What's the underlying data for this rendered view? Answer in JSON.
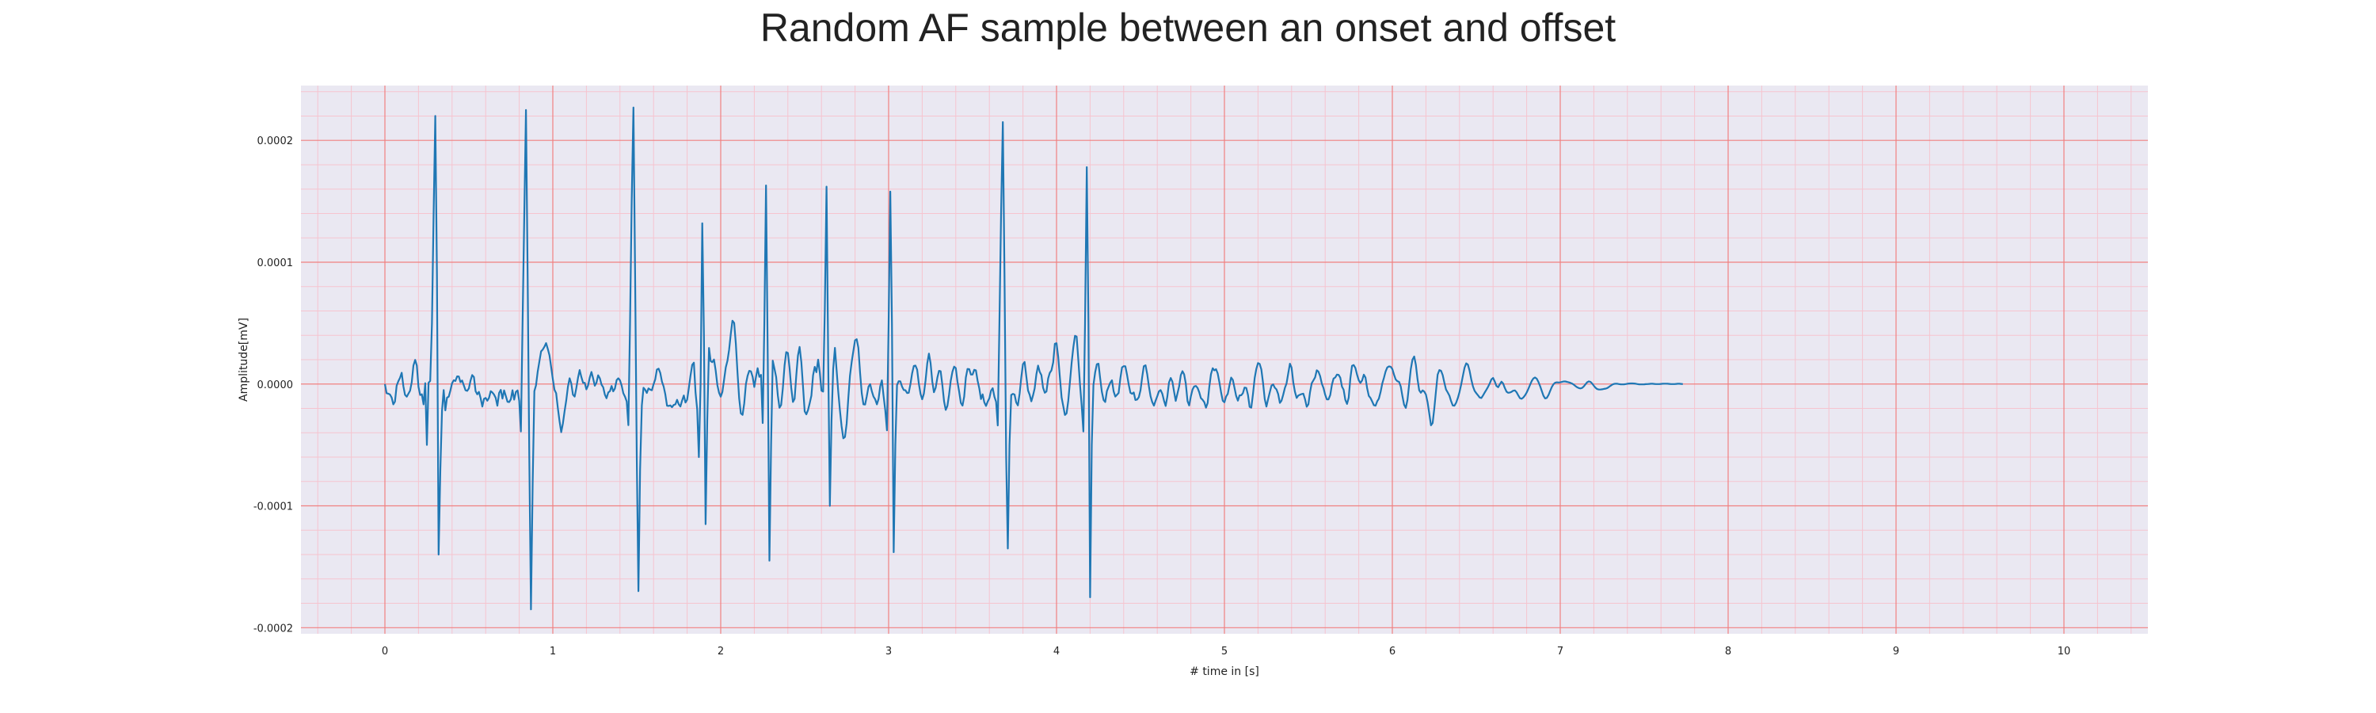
{
  "chart_data": {
    "type": "line",
    "title": "Random AF sample between an onset and offset",
    "xlabel": "# time in [s]",
    "ylabel": "Amplitude[mV]",
    "xlim": [
      -0.5,
      10.5
    ],
    "ylim": [
      -0.000205,
      0.000245
    ],
    "xticks": [
      0,
      1,
      2,
      3,
      4,
      5,
      6,
      7,
      8,
      9,
      10
    ],
    "xtick_labels": [
      "0",
      "1",
      "2",
      "3",
      "4",
      "5",
      "6",
      "7",
      "8",
      "9",
      "10"
    ],
    "yticks": [
      -0.0002,
      -0.0001,
      0.0,
      0.0001,
      0.0002
    ],
    "ytick_labels": [
      "-0.0002",
      "-0.0001",
      "0.0000",
      "0.0001",
      "0.0002"
    ],
    "grid": true,
    "minor_grid": true,
    "legend": "none",
    "colors": {
      "line": "#1f77b4",
      "background": "#eae8f2",
      "major_grid": "#f08080",
      "minor_grid": "#f6c4cf"
    },
    "sampling_rate_hz": 100,
    "series": [
      {
        "x_start": 0,
        "x_step": 0.01,
        "values": [
          0.0,
          -7.5e-06,
          -7.9e-06,
          -8.6e-06,
          -1.11e-05,
          -1.67e-05,
          -1.44e-05,
          -1.4e-06,
          2.4e-06,
          5.2e-06,
          9.3e-06,
          -1.7e-06,
          -8.9e-06,
          -1.04e-05,
          -7.9e-06,
          -5.4e-06,
          1.6e-06,
          1.52e-05,
          1.98e-05,
          1.52e-05,
          -2.4e-06,
          -9e-06,
          -8.4e-06,
          -1.67e-05,
          7e-07,
          -5e-05,
          1.1e-06,
          2.5e-06,
          5e-05,
          0.00014,
          0.00022,
          9e-05,
          -0.00014,
          -7e-05,
          -2.2e-05,
          -4.9e-06,
          -2.16e-05,
          -1.12e-05,
          -1.04e-05,
          -5.2e-06,
          7e-07,
          3.1e-06,
          2.5e-06,
          6.3e-06,
          6.2e-06,
          1.5e-06,
          2.9e-06,
          -1.1e-06,
          -5.1e-06,
          -5.6e-06,
          -3.6e-06,
          2.8e-06,
          7.4e-06,
          5.7e-06,
          -5.8e-06,
          -8.4e-06,
          -6.4e-06,
          -1.15e-05,
          -1.85e-05,
          -1.22e-05,
          -1.14e-05,
          -1.37e-05,
          -1.14e-05,
          -5.9e-06,
          -6.9e-06,
          -8.7e-06,
          -1.14e-05,
          -1.78e-05,
          -7.3e-06,
          -4.8e-06,
          -1.19e-05,
          -5.2e-06,
          -9.7e-06,
          -1.46e-05,
          -1.48e-05,
          -1.25e-05,
          -5.1e-06,
          -1.28e-05,
          -6.4e-06,
          -5.2e-06,
          -1.38e-05,
          -3.9e-05,
          5e-05,
          0.00014,
          0.000225,
          9e-05,
          -6e-05,
          -0.000185,
          -8e-05,
          -5.8e-06,
          -1e-06,
          1.01e-05,
          1.84e-05,
          2.68e-05,
          2.83e-05,
          3.06e-05,
          3.36e-05,
          2.9e-05,
          2.35e-05,
          1.39e-05,
          4.1e-06,
          -4.7e-06,
          -7.5e-06,
          -2e-05,
          -3.05e-05,
          -3.95e-05,
          -3.25e-05,
          -2.26e-05,
          -1.32e-05,
          -2.1e-06,
          4.7e-06,
          5e-07,
          -8.7e-06,
          -1.03e-05,
          -3.2e-06,
          5.1e-06,
          1.15e-05,
          5.9e-06,
          1e-06,
          1e-06,
          -4.4e-06,
          -1.2e-06,
          5.2e-06,
          9.9e-06,
          4.6e-06,
          -1.4e-06,
          1.1e-06,
          7.2e-06,
          4.7e-06,
          -5e-07,
          -2.6e-06,
          -8.6e-06,
          -1.17e-05,
          -6.9e-06,
          -5.9e-06,
          -1.6e-06,
          -6e-06,
          -3.7e-06,
          3.2e-06,
          4.7e-06,
          3e-06,
          -1.2e-06,
          -7.5e-06,
          -1.05e-05,
          -1.43e-05,
          -3.38e-05,
          5e-05,
          0.00015,
          0.000227,
          9e-05,
          -6e-05,
          -0.00017,
          -7e-05,
          -1.76e-05,
          -3.1e-06,
          -4.7e-06,
          -7.3e-06,
          -3.6e-06,
          -4.6e-06,
          -5.1e-06,
          -2e-07,
          3.8e-06,
          1.19e-05,
          1.26e-05,
          9.1e-06,
          2e-06,
          -1.9e-06,
          -8.3e-06,
          -1.78e-05,
          -1.8e-05,
          -1.75e-05,
          -1.9e-05,
          -1.72e-05,
          -1.67e-05,
          -1.29e-05,
          -1.66e-05,
          -1.84e-05,
          -1.36e-05,
          -9.4e-06,
          -1.52e-05,
          -1.29e-05,
          -3.5e-06,
          6.7e-06,
          1.58e-05,
          1.75e-05,
          -6.9e-06,
          -2.09e-05,
          -6e-05,
          5e-07,
          0.000132,
          4e-05,
          -0.000115,
          -3e-05,
          2.96e-05,
          1.88e-05,
          1.79e-05,
          2.01e-05,
          1.13e-05,
          -1e-06,
          -7.2e-06,
          -1.04e-05,
          -6.5e-06,
          3.3e-06,
          1.37e-05,
          1.91e-05,
          2.82e-05,
          4.11e-05,
          5.2e-05,
          5.01e-05,
          3.31e-05,
          9.3e-06,
          -1.18e-05,
          -2.41e-05,
          -2.53e-05,
          -1.58e-05,
          -1e-07,
          6.7e-06,
          1.08e-05,
          1.04e-05,
          5.9e-06,
          -2.4e-06,
          5.7e-06,
          1.3e-05,
          5.9e-06,
          7.5e-06,
          -3.2e-05,
          5e-05,
          0.000163,
          2e-05,
          -0.000145,
          -5e-05,
          1.92e-05,
          1.28e-05,
          5.8e-06,
          -9.3e-06,
          -1.95e-05,
          -1.72e-05,
          -3.7e-06,
          1.52e-05,
          2.62e-05,
          2.55e-05,
          1.34e-05,
          -2.9e-06,
          -1.47e-05,
          -1.21e-05,
          6.9e-06,
          2.34e-05,
          3.05e-05,
          1.8e-05,
          -1.9e-06,
          -2.24e-05,
          -2.49e-05,
          -2.14e-05,
          -1.56e-05,
          -9.5e-06,
          7.2e-06,
          1.41e-05,
          9.7e-06,
          2e-05,
          9.4e-06,
          -5.5e-06,
          -6.2e-06,
          6e-05,
          0.000162,
          2e-05,
          -0.0001,
          -3e-05,
          1.22e-05,
          2.97e-05,
          1.16e-05,
          -6.3e-06,
          -2.15e-05,
          -3.46e-05,
          -4.46e-05,
          -4.34e-05,
          -3.25e-05,
          -1.16e-05,
          6.9e-06,
          1.83e-05,
          2.72e-05,
          3.59e-05,
          3.68e-05,
          2.97e-05,
          8.9e-06,
          -7.7e-06,
          -1.67e-05,
          -1.68e-05,
          -1.01e-05,
          -2.2e-06,
          -1e-07,
          -5.9e-06,
          -1.03e-05,
          -1.25e-05,
          -1.67e-05,
          -1.22e-05,
          -1.8e-06,
          3e-06,
          -9.7e-06,
          -2.18e-05,
          -3.8e-05,
          5e-05,
          0.000158,
          5e-05,
          -0.000138,
          -5e-05,
          -8e-07,
          2.3e-06,
          2.2e-06,
          -2.2e-06,
          -4.9e-06,
          -5.1e-06,
          -7.4e-06,
          -7.2e-06,
          1e-07,
          8.9e-06,
          1.48e-05,
          1.51e-05,
          1.19e-05,
          1e-07,
          -8.1e-06,
          -1.25e-05,
          -7.9e-06,
          2.7e-06,
          1.71e-05,
          2.5e-05,
          1.7e-05,
          2.2e-06,
          -6.7e-06,
          -3.1e-06,
          5.1e-06,
          1.08e-05,
          1.05e-05,
          -5e-07,
          -1.42e-05,
          -2.12e-05,
          -1.8e-05,
          -8.8e-06,
          2.6e-06,
          1.02e-05,
          1.43e-05,
          1.31e-05,
          2.1e-06,
          -6.1e-06,
          -1.55e-05,
          -1.77e-05,
          -1.04e-05,
          5.4e-06,
          1.24e-05,
          1.22e-05,
          7.8e-06,
          7.8e-06,
          1.17e-05,
          1.13e-05,
          2.6e-06,
          -3.6e-06,
          -1.23e-05,
          -8.5e-06,
          -1.5e-05,
          -1.8e-05,
          -1.44e-05,
          -1.17e-05,
          -5.5e-06,
          -3.4e-06,
          -1.05e-05,
          -1.46e-05,
          -3.4e-05,
          5e-05,
          0.00014,
          0.000215,
          9e-05,
          -6e-05,
          -0.000135,
          -5e-05,
          -9e-06,
          -8.1e-06,
          -8.6e-06,
          -1.51e-05,
          -1.75e-05,
          -7.9e-06,
          5.5e-06,
          1.63e-05,
          1.81e-05,
          6.6e-06,
          -5.2e-06,
          -8.8e-06,
          -1.42e-05,
          -9.4e-06,
          -3.6e-06,
          8.1e-06,
          1.51e-05,
          1e-05,
          7.3e-06,
          -3e-06,
          -7.1e-06,
          -6.1e-06,
          4.5e-06,
          9.2e-06,
          1.12e-05,
          1.78e-05,
          3.31e-05,
          3.35e-05,
          2.25e-05,
          5.8e-06,
          -1.1e-05,
          -1.82e-05,
          -2.54e-05,
          -2.4e-05,
          -1.38e-05,
          2.2e-06,
          1.76e-05,
          3.01e-05,
          3.96e-05,
          3.89e-05,
          1.9e-05,
          -1e-06,
          -1.8e-05,
          -3.9e-05,
          5e-05,
          0.000178,
          5e-05,
          -0.000175,
          -5e-05,
          -8e-07,
          9.7e-06,
          1.62e-05,
          1.67e-05,
          4.7e-06,
          -6.3e-06,
          -1.31e-05,
          -1.47e-05,
          -5.8e-06,
          -2.3e-06,
          1e-06,
          3.1e-06,
          -6e-06,
          -1.03e-05,
          -8.9e-06,
          -7.3e-06,
          4.7e-06,
          1.36e-05,
          1.47e-05,
          1.46e-05,
          7.7e-06,
          -6e-07,
          -7.2e-06,
          -8e-06,
          -6.9e-06,
          -1.31e-05,
          -1.27e-05,
          -1.08e-05,
          -5.2e-06,
          5.4e-06,
          1.47e-05,
          1.54e-05,
          8.1e-06,
          -1.7e-06,
          -1e-05,
          -1.47e-05,
          -1.77e-05,
          -1.36e-05,
          -1e-05,
          -6e-06,
          -5e-06,
          -8e-06,
          -1.37e-05,
          -1.8e-05,
          -1.04e-05,
          1.3e-06,
          5e-06,
          1.9e-06,
          -6.2e-06,
          -1.38e-05,
          -8e-06,
          -2e-06,
          7.3e-06,
          1.06e-05,
          8e-06,
          5e-07,
          -1.4e-05,
          -1.76e-05,
          -1.02e-05,
          -4.5e-06,
          -2e-06,
          -1.6e-06,
          -3.2e-06,
          -6.8e-06,
          -1.16e-05,
          -1.29e-05,
          -1.49e-05,
          -1.94e-05,
          -1.56e-05,
          -2.3e-06,
          8.1e-06,
          1.3e-05,
          1.12e-05,
          1.22e-05,
          8.7e-06,
          1.6e-06,
          -7e-06,
          -1.37e-05,
          -1.5e-05,
          -1.03e-05,
          -8.1e-06,
          -9e-07,
          5.3e-06,
          3.4e-06,
          -3.1e-06,
          -9.8e-06,
          -1.36e-05,
          -9.3e-06,
          -9.2e-06,
          -7.5e-06,
          -2.9e-06,
          -3.2e-06,
          -8.9e-06,
          -1.87e-05,
          -1.94e-05,
          -8.5e-06,
          5e-06,
          1.25e-05,
          1.72e-05,
          1.65e-05,
          1.2e-05,
          7e-07,
          -1.23e-05,
          -1.85e-05,
          -1.25e-05,
          -6.9e-06,
          -1.3e-06,
          -3e-07,
          -3e-06,
          -4.4e-06,
          -8.1e-06,
          -1.55e-05,
          -1.36e-05,
          -8.8e-06,
          -3.3e-06,
          4e-07,
          8.9e-06,
          1.67e-05,
          1.34e-05,
          1.5e-06,
          -6.3e-06,
          -1.14e-05,
          -9.4e-06,
          -8.8e-06,
          -8.2e-06,
          -7.9e-06,
          -1.26e-05,
          -1.86e-05,
          -1.67e-05,
          -6.6e-06,
          6e-07,
          3.1e-06,
          5.5e-06,
          1.13e-05,
          1.02e-05,
          6.6e-06,
          2e-07,
          -3.3e-06,
          -8.8e-06,
          -1.26e-05,
          -1.26e-05,
          -9.1e-06,
          -6e-07,
          4.5e-06,
          5.4e-06,
          7.7e-06,
          7.5e-06,
          5.2e-06,
          -2.1e-06,
          -4.7e-06,
          -1.29e-05,
          -1.63e-05,
          -1.13e-05,
          4.7e-06,
          1.49e-05,
          1.56e-05,
          1.31e-05,
          7.6e-06,
          3.1e-06,
          9e-07,
          2.9e-06,
          7.7e-06,
          5.3e-06,
          -3.5e-06,
          -9.7e-06,
          -1.14e-05,
          -1.44e-05,
          -1.74e-05,
          -1.78e-05,
          -1.42e-05,
          -1.2e-05,
          -6.4e-06,
          4e-07,
          5.1e-06,
          1.03e-05,
          1.36e-05,
          1.45e-05,
          1.42e-05,
          1.23e-05,
          7.8e-06,
          3.8e-06,
          2.3e-06,
          1.8e-06,
          -1.9e-06,
          -9.8e-06,
          -1.69e-05,
          -1.96e-05,
          -1.31e-05,
          -5e-07,
          1.22e-05,
          2e-05,
          2.26e-05,
          1.58e-05,
          4e-06,
          -5.1e-06,
          -7.1e-06,
          -5.2e-06,
          -6.2e-06,
          -8.6e-06,
          -1.49e-05,
          -2.4e-05,
          -3.39e-05,
          -3.2e-05,
          -2e-05,
          -5.8e-06,
          7.7e-06,
          1.15e-05,
          1.09e-05,
          7.3e-06,
          1.1e-06,
          -4.5e-06,
          -7e-06,
          -9.6e-06,
          -1.41e-05,
          -1.76e-05,
          -1.78e-05,
          -1.53e-05,
          -1.15e-05,
          -6.6e-06,
          -5e-07,
          6.5e-06,
          1.35e-05,
          1.7e-05,
          1.6e-05,
          1.1e-05,
          4e-06,
          -2e-06,
          -5.6e-06,
          -7.5e-06,
          -9.2e-06,
          -1.1e-05,
          -1.15e-05,
          -9.4e-06,
          -7e-06,
          -4.8e-06,
          -2.4e-06,
          5e-07,
          3.9e-06,
          5e-06,
          2.1e-06,
          -1.5e-06,
          -2.6e-06,
          -2e-07,
          1.9e-06,
          4e-07,
          -3.2e-06,
          -6.3e-06,
          -7.2e-06,
          -7e-06,
          -6.4e-06,
          -5.5e-06,
          -5.2e-06,
          -6.8e-06,
          -9.3e-06,
          -1.16e-05,
          -1.21e-05,
          -1.1e-05,
          -9.3e-06,
          -7e-06,
          -4e-06,
          -8e-07,
          2.5e-06,
          4.6e-06,
          5.4e-06,
          4.4e-06,
          1.8e-06,
          -1.7e-06,
          -5.7e-06,
          -9.6e-06,
          -1.18e-05,
          -1.14e-05,
          -9e-06,
          -5.6e-06,
          -2.4e-06,
          -1e-07,
          1.1e-06,
          1.4e-06,
          1.3e-06,
          1.4e-06,
          1.7e-06,
          2.1e-06,
          2.1e-06,
          1.8e-06,
          1.4e-06,
          1e-06,
          4e-07,
          -5e-07,
          -1.6e-06,
          -2.6e-06,
          -3.3e-06,
          -3.6e-06,
          -3.2e-06,
          -2e-06,
          -3e-07,
          1.4e-06,
          2.2e-06,
          1.8e-06,
          4e-07,
          -1.4e-06,
          -3e-06,
          -4.1e-06,
          -4.5e-06,
          -4.5e-06,
          -4.3e-06,
          -4e-06,
          -3.8e-06,
          -3.3e-06,
          -2.4e-06,
          -1.4e-06,
          -5e-07,
          1e-07,
          3e-07,
          2e-07,
          0.0,
          -2e-07,
          -3e-07,
          -2e-07,
          0.0,
          2e-07,
          4e-07,
          5e-07,
          5e-07,
          4e-07,
          2e-07,
          0.0,
          -2e-07,
          -3e-07,
          -3e-07,
          -2e-07,
          -1e-07,
          0.0,
          1e-07,
          2e-07,
          2e-07,
          1e-07,
          0.0,
          0.0,
          0.0,
          1e-07,
          2e-07,
          3e-07,
          3e-07,
          2e-07,
          1e-07,
          0.0,
          0.0,
          0.0,
          1e-07,
          2e-07,
          2e-07,
          1e-07,
          0.0
        ]
      }
    ]
  }
}
